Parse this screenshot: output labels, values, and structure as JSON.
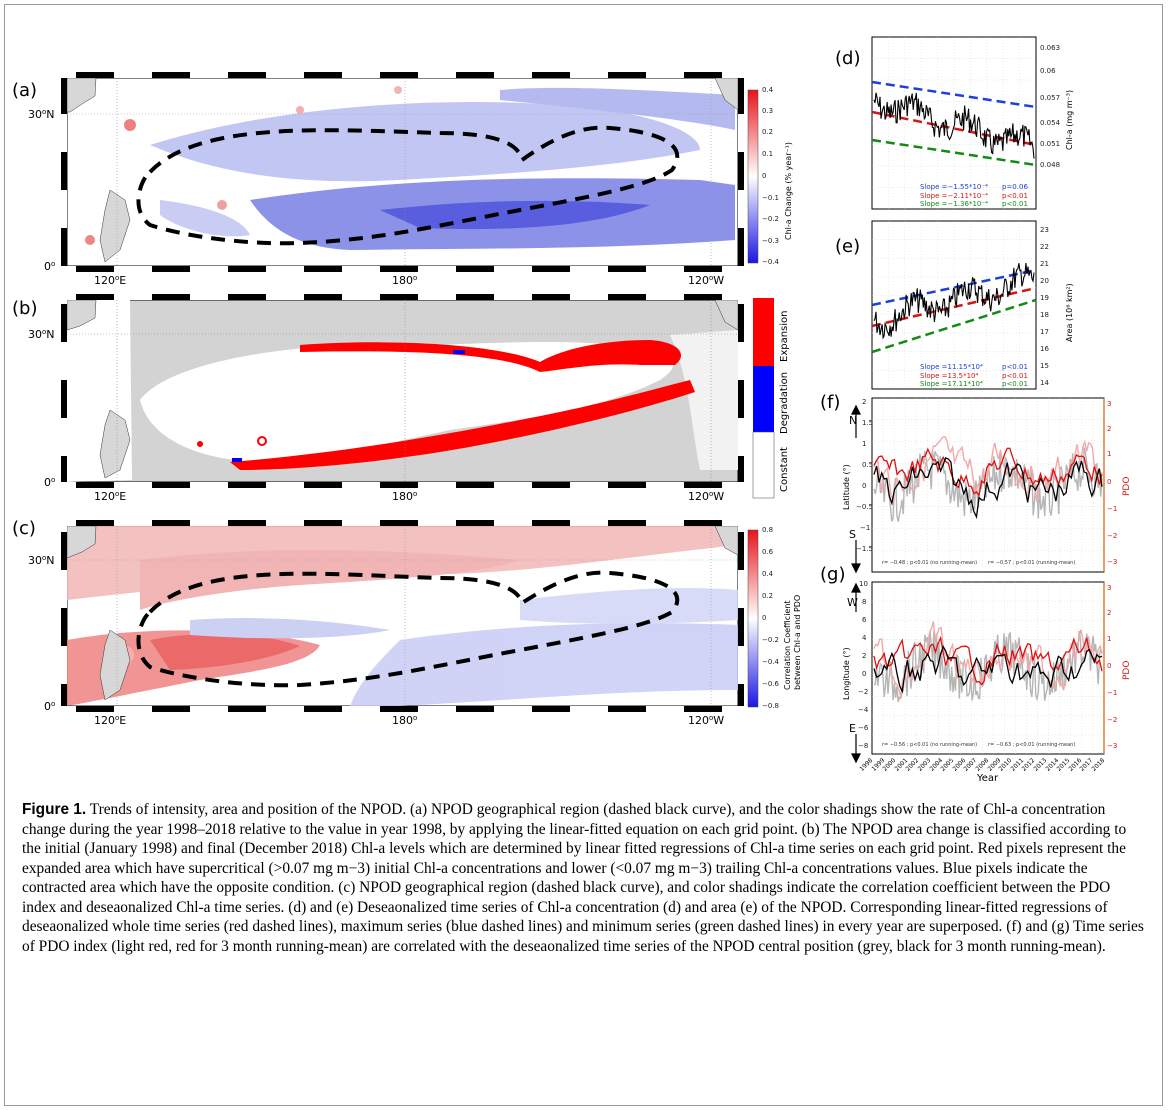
{
  "panels": {
    "a": {
      "letter": "(a)",
      "colorbar_label": "Chl-a Change (% year⁻¹)",
      "colorbar_ticks": [
        "0.4",
        "0.3",
        "0.2",
        "0.1",
        "0",
        "−0.1",
        "−0.2",
        "−0.3",
        "−0.4"
      ]
    },
    "b": {
      "letter": "(b)",
      "legend": [
        "Expansion",
        "Degradation",
        "Constant"
      ]
    },
    "c": {
      "letter": "(c)",
      "colorbar_label_1": "Correlation Coefficient",
      "colorbar_label_2": "between Chl-a and PDO",
      "colorbar_ticks": [
        "0.8",
        "0.6",
        "0.4",
        "0.2",
        "0",
        "−0.2",
        "−0.4",
        "−0.6",
        "−0.8"
      ]
    },
    "d": {
      "letter": "(d)",
      "ylabel": "Chl-a (mg m⁻³)",
      "yticks": [
        "0.063",
        "0.06",
        "0.057",
        "0.054",
        "0.051",
        "0.048"
      ],
      "stats": [
        {
          "slope": "Slope =−1.55*10⁻⁴",
          "p": "p=0.06",
          "color": "#1f3fd8"
        },
        {
          "slope": "Slope =−2.11*10⁻⁴",
          "p": "p<0.01",
          "color": "#d01818"
        },
        {
          "slope": "Slope =−1.36*10⁻⁴",
          "p": "p<0.01",
          "color": "#138a13"
        }
      ]
    },
    "e": {
      "letter": "(e)",
      "ylabel": "Area (10⁶ km²)",
      "yticks": [
        "23",
        "22",
        "21",
        "20",
        "19",
        "18",
        "17",
        "16",
        "15",
        "14"
      ],
      "stats": [
        {
          "slope": "Slope =11.15*10⁴",
          "p": "p<0.01",
          "color": "#1f3fd8"
        },
        {
          "slope": "Slope =13.5*10⁴",
          "p": "p<0.01",
          "color": "#d01818"
        },
        {
          "slope": "Slope =17.11*10⁴",
          "p": "p<0.01",
          "color": "#138a13"
        }
      ]
    },
    "f": {
      "letter": "(f)",
      "ylabel": "Latitude (°)",
      "ylabel_right": "PDO",
      "north": "N",
      "south": "S",
      "yticks": [
        "2",
        "1.5",
        "1",
        "0.5",
        "0",
        "−0.5",
        "−1",
        "−1.5"
      ],
      "yticks_right": [
        "3",
        "2",
        "1",
        "0",
        "−1",
        "−2",
        "−3"
      ],
      "corr_left": "r= −0.48 ; p<0.01 (no running-mean)",
      "corr_right": "r= −0.57 ; p<0.01 (running-mean)"
    },
    "g": {
      "letter": "(g)",
      "ylabel": "Longitude (°)",
      "ylabel_right": "PDO",
      "west": "W",
      "east": "E",
      "yticks": [
        "10",
        "8",
        "6",
        "4",
        "2",
        "0",
        "−2",
        "−4",
        "−6",
        "−8"
      ],
      "yticks_right": [
        "3",
        "2",
        "1",
        "0",
        "−1",
        "−2",
        "−3"
      ],
      "corr_left": "r= −0.56 ; p<0.01 (no running-mean)",
      "corr_right": "r= −0.63 ; p<0.01 (running-mean)",
      "xlabel": "Year",
      "years": [
        "1998",
        "1999",
        "2000",
        "2001",
        "2002",
        "2003",
        "2004",
        "2005",
        "2006",
        "2007",
        "2008",
        "2009",
        "2010",
        "2011",
        "2012",
        "2013",
        "2014",
        "2015",
        "2016",
        "2017",
        "2018"
      ]
    }
  },
  "map_axes": {
    "lat_30": "30",
    "lat_0": "0",
    "n_suffix": "N",
    "lon_120e": "120",
    "lon_180": "180",
    "lon_120w": "120",
    "e_suffix": "E",
    "w_suffix": "W"
  },
  "colors": {
    "land": "#d7d7d7",
    "expansion": "#ff0000",
    "degradation": "#0000ff",
    "positive": "#e84040",
    "negative": "#3040e0"
  },
  "caption": {
    "label": "Figure 1.",
    "text": " Trends of intensity, area and position of the NPOD. (a) NPOD geographical region (dashed black curve), and the color shadings show the rate of Chl-a concentration change during the year 1998–2018 relative to the value in year 1998, by applying the linear-fitted equation on each grid point. (b) The NPOD area change is classified according to the initial (January 1998) and final (December 2018) Chl-a levels which are determined by linear fitted regressions of Chl-a time series on each grid point. Red pixels represent the expanded area which have supercritical (>0.07 mg m−3) initial Chl-a concentrations and lower (<0.07 mg m−3) trailing Chl-a concentrations values. Blue pixels indicate the contracted area which have the opposite condition. (c) NPOD geographical region (dashed black curve), and color shadings indicate the correlation coefficient between the PDO index and deseaonalized Chl-a time series. (d) and (e) Deseaonalized time series of Chl-a concentration (d) and area (e) of the NPOD. Corresponding linear-fitted regressions of deseaonalized whole time series (red dashed lines), maximum series (blue dashed lines) and minimum series (green dashed lines) in every year are superposed. (f) and (g) Time series of PDO index (light red, red for 3 month running-mean) are correlated with the deseaonalized time series of the NPOD central position (grey, black for 3 month running-mean)."
  }
}
